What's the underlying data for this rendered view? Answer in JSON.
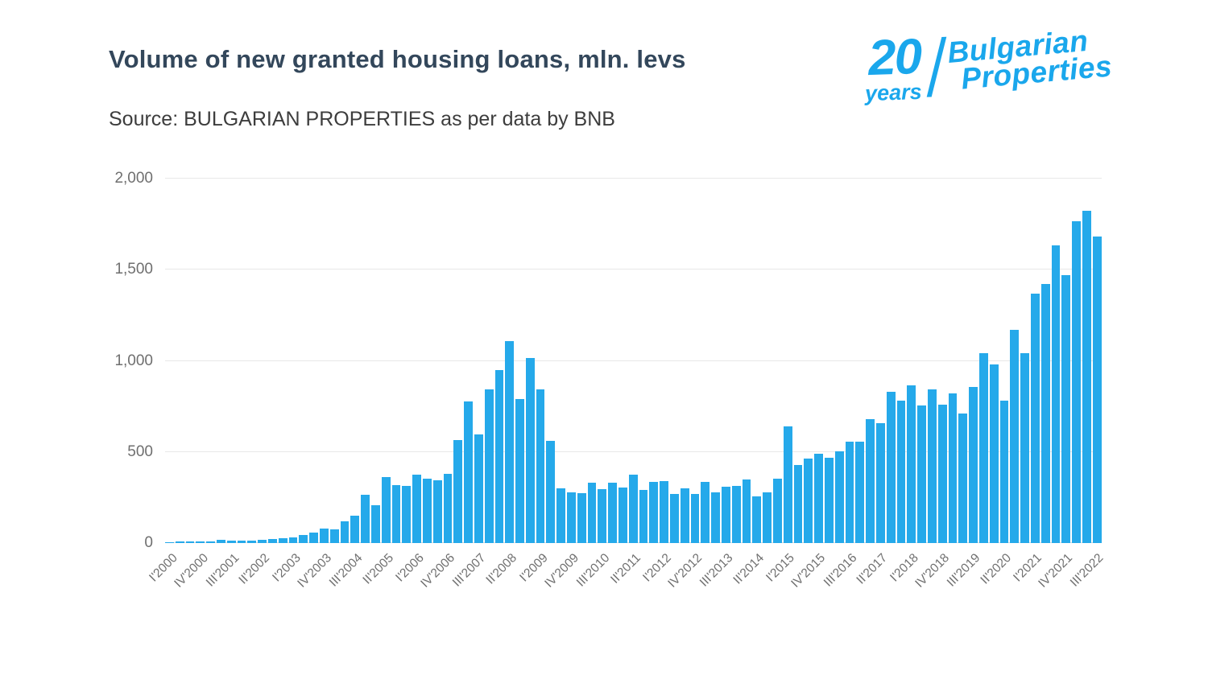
{
  "header": {
    "title": "Volume of new granted housing loans, mln. levs",
    "source": "Source: BULGARIAN PROPERTIES as per data by BNB"
  },
  "logo": {
    "number": "20",
    "years": "years",
    "brand_line1": "Bulgarian",
    "brand_line2": "Properties",
    "color": "#1aa7ec"
  },
  "chart_data": {
    "type": "bar",
    "title": "Volume of new granted housing loans, mln. levs",
    "xlabel": "",
    "ylabel": "",
    "ylim": [
      0,
      2000
    ],
    "yticks": [
      0,
      500,
      1000,
      1500,
      2000
    ],
    "ytick_labels": [
      "0",
      "500",
      "1,000",
      "1,500",
      "2,000"
    ],
    "grid": true,
    "legend": false,
    "bar_color": "#25a9ea",
    "label_every": 3,
    "categories": [
      "I'2000",
      "II'2000",
      "III'2000",
      "IV'2000",
      "I'2001",
      "II'2001",
      "III'2001",
      "IV'2001",
      "I'2002",
      "II'2002",
      "III'2002",
      "IV'2002",
      "I'2003",
      "II'2003",
      "III'2003",
      "IV'2003",
      "I'2004",
      "II'2004",
      "III'2004",
      "IV'2004",
      "I'2005",
      "II'2005",
      "III'2005",
      "IV'2005",
      "I'2006",
      "II'2006",
      "III'2006",
      "IV'2006",
      "I'2007",
      "II'2007",
      "III'2007",
      "IV'2007",
      "I'2008",
      "II'2008",
      "III'2008",
      "IV'2008",
      "I'2009",
      "II'2009",
      "III'2009",
      "IV'2009",
      "I'2010",
      "II'2010",
      "III'2010",
      "IV'2010",
      "I'2011",
      "II'2011",
      "III'2011",
      "IV'2011",
      "I'2012",
      "II'2012",
      "III'2012",
      "IV'2012",
      "I'2013",
      "II'2013",
      "III'2013",
      "IV'2013",
      "I'2014",
      "II'2014",
      "III'2014",
      "IV'2014",
      "I'2015",
      "II'2015",
      "III'2015",
      "IV'2015",
      "I'2016",
      "II'2016",
      "III'2016",
      "IV'2016",
      "I'2017",
      "II'2017",
      "III'2017",
      "IV'2017",
      "I'2018",
      "II'2018",
      "III'2018",
      "IV'2018",
      "I'2019",
      "II'2019",
      "III'2019",
      "IV'2019",
      "I'2020",
      "II'2020",
      "III'2020",
      "IV'2020",
      "I'2021",
      "II'2021",
      "III'2021",
      "IV'2021",
      "I'2022",
      "II'2022",
      "III'2022"
    ],
    "values": [
      5,
      7,
      8,
      10,
      10,
      17,
      15,
      15,
      13,
      18,
      22,
      28,
      32,
      45,
      58,
      80,
      75,
      118,
      152,
      265,
      208,
      360,
      318,
      312,
      375,
      352,
      345,
      378,
      565,
      775,
      595,
      845,
      950,
      1110,
      790,
      1015,
      845,
      560,
      300,
      278,
      275,
      330,
      295,
      330,
      305,
      375,
      290,
      335,
      340,
      268,
      300,
      270,
      335,
      280,
      310,
      315,
      350,
      258,
      280,
      355,
      640,
      430,
      465,
      490,
      470,
      505,
      555,
      555,
      680,
      660,
      830,
      780,
      865,
      755,
      845,
      760,
      820,
      710,
      855,
      1040,
      980,
      780,
      1170,
      1040,
      1370,
      1420,
      1635,
      1470,
      1765,
      1825,
      1680
    ]
  }
}
